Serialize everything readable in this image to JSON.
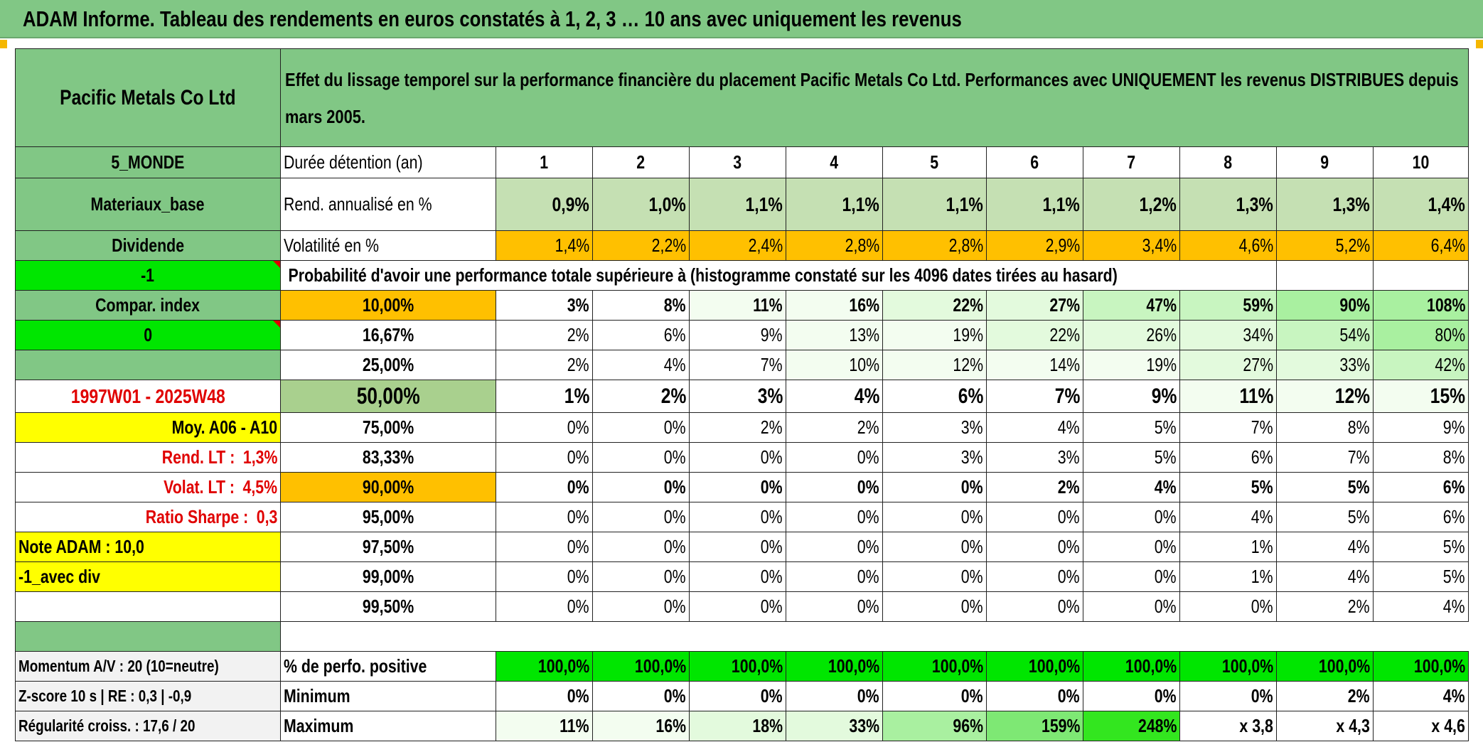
{
  "title": "ADAM Informe. Tableau des rendements en euros constatés à 1, 2, 3 … 10 ans avec uniquement les revenus",
  "header": {
    "fund_name": "Pacific Metals Co Ltd",
    "description": "Effet du lissage temporel sur la performance financière du placement Pacific Metals Co Ltd. Performances avec UNIQUEMENT les revenus DISTRIBUES depuis mars 2005."
  },
  "colors": {
    "header_green": "#81c785",
    "light_green": "#c5e0b3",
    "orange": "#ffc000",
    "lime": "#00e600",
    "yellow": "#ffff00",
    "red_text": "#e00000"
  },
  "durations": {
    "label": "Durée détention (an)",
    "values": [
      "1",
      "2",
      "3",
      "4",
      "5",
      "6",
      "7",
      "8",
      "9",
      "10"
    ]
  },
  "rend": {
    "label": "Rend. annualisé en %",
    "values": [
      "0,9%",
      "1,0%",
      "1,1%",
      "1,1%",
      "1,1%",
      "1,1%",
      "1,2%",
      "1,3%",
      "1,3%",
      "1,4%"
    ]
  },
  "vol": {
    "label": "Volatilité en %",
    "values": [
      "1,4%",
      "2,2%",
      "2,4%",
      "2,8%",
      "2,8%",
      "2,9%",
      "3,4%",
      "4,6%",
      "5,2%",
      "6,4%"
    ]
  },
  "prob_header": "Probabilité d'avoir une performance totale supérieure à (histogramme constaté sur les 4096 dates tirées au hasard)",
  "left": {
    "zone": "5_MONDE",
    "sector": "Materiaux_base",
    "type": "Dividende",
    "flag1": "-1",
    "compar": "Compar. index",
    "flag0": "0",
    "period": "1997W01 - 2025W48",
    "moy": "Moy. A06 - A10",
    "rend_lt_label": "Rend. LT :",
    "rend_lt_value": "1,3%",
    "volat_lt_label": "Volat. LT :",
    "volat_lt_value": "4,5%",
    "sharpe_label": "Ratio Sharpe :",
    "sharpe_value": "0,3",
    "note": "Note ADAM : 10,0",
    "avec_div": "-1_avec div",
    "momentum": "Momentum A/V : 20 (10=neutre)",
    "zscore": "Z-score 10 s | RE : 0,3 | -0,9",
    "regularite": "Régularité croiss. : 17,6 / 20"
  },
  "prob_rows": [
    {
      "pct": "10,00%",
      "values": [
        "3%",
        "8%",
        "11%",
        "16%",
        "22%",
        "27%",
        "47%",
        "59%",
        "90%",
        "108%"
      ]
    },
    {
      "pct": "16,67%",
      "values": [
        "2%",
        "6%",
        "9%",
        "13%",
        "19%",
        "22%",
        "26%",
        "34%",
        "54%",
        "80%"
      ]
    },
    {
      "pct": "25,00%",
      "values": [
        "2%",
        "4%",
        "7%",
        "10%",
        "12%",
        "14%",
        "19%",
        "27%",
        "33%",
        "42%"
      ]
    },
    {
      "pct": "50,00%",
      "values": [
        "1%",
        "2%",
        "3%",
        "4%",
        "6%",
        "7%",
        "9%",
        "11%",
        "12%",
        "15%"
      ]
    },
    {
      "pct": "75,00%",
      "values": [
        "0%",
        "0%",
        "2%",
        "2%",
        "3%",
        "4%",
        "5%",
        "7%",
        "8%",
        "9%"
      ]
    },
    {
      "pct": "83,33%",
      "values": [
        "0%",
        "0%",
        "0%",
        "0%",
        "3%",
        "3%",
        "5%",
        "6%",
        "7%",
        "8%"
      ]
    },
    {
      "pct": "90,00%",
      "values": [
        "0%",
        "0%",
        "0%",
        "0%",
        "0%",
        "2%",
        "4%",
        "5%",
        "5%",
        "6%"
      ]
    },
    {
      "pct": "95,00%",
      "values": [
        "0%",
        "0%",
        "0%",
        "0%",
        "0%",
        "0%",
        "0%",
        "4%",
        "5%",
        "6%"
      ]
    },
    {
      "pct": "97,50%",
      "values": [
        "0%",
        "0%",
        "0%",
        "0%",
        "0%",
        "0%",
        "0%",
        "1%",
        "4%",
        "5%"
      ]
    },
    {
      "pct": "99,00%",
      "values": [
        "0%",
        "0%",
        "0%",
        "0%",
        "0%",
        "0%",
        "0%",
        "1%",
        "4%",
        "5%"
      ]
    },
    {
      "pct": "99,50%",
      "values": [
        "0%",
        "0%",
        "0%",
        "0%",
        "0%",
        "0%",
        "0%",
        "0%",
        "2%",
        "4%"
      ]
    }
  ],
  "stats": {
    "positive": {
      "label": "% de perfo. positive",
      "values": [
        "100,0%",
        "100,0%",
        "100,0%",
        "100,0%",
        "100,0%",
        "100,0%",
        "100,0%",
        "100,0%",
        "100,0%",
        "100,0%"
      ]
    },
    "minimum": {
      "label": "Minimum",
      "values": [
        "0%",
        "0%",
        "0%",
        "0%",
        "0%",
        "0%",
        "0%",
        "0%",
        "2%",
        "4%"
      ]
    },
    "maximum": {
      "label": "Maximum",
      "values": [
        "11%",
        "16%",
        "18%",
        "33%",
        "96%",
        "159%",
        "248%",
        "x 3,8",
        "x 4,3",
        "x 4,6"
      ]
    }
  }
}
